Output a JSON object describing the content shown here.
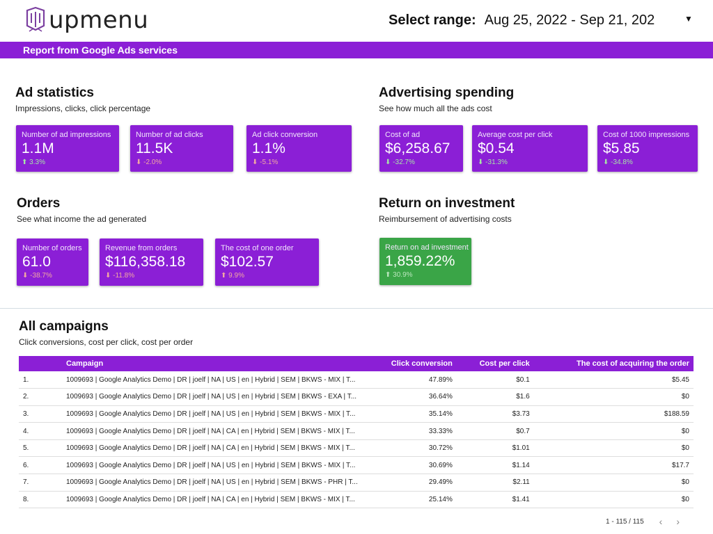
{
  "header": {
    "logo_text": "upmenu",
    "range_label": "Select range:",
    "range_value": "Aug 25, 2022 - Sep 21, 202",
    "caret": "▼"
  },
  "banner": {
    "text": "Report from Google Ads services"
  },
  "ad_statistics": {
    "title": "Ad statistics",
    "subtitle": "Impressions, clicks, click percentage",
    "cards": [
      {
        "label": "Number of ad impressions",
        "value": "1.1M",
        "delta": "3.3%",
        "direction": "up"
      },
      {
        "label": "Number of ad clicks",
        "value": "11.5K",
        "delta": "-2.0%",
        "direction": "down"
      },
      {
        "label": "Ad click conversion",
        "value": "1.1%",
        "delta": "-5.1%",
        "direction": "down"
      }
    ]
  },
  "advertising_spending": {
    "title": "Advertising spending",
    "subtitle": "See how much all the ads cost",
    "cards": [
      {
        "label": "Cost of ad",
        "value": "$6,258.67",
        "delta": "-32.7%",
        "direction": "down"
      },
      {
        "label": "Average cost per click",
        "value": "$0.54",
        "delta": "-31.3%",
        "direction": "down"
      },
      {
        "label": "Cost of 1000 impressions",
        "value": "$5.85",
        "delta": "-34.8%",
        "direction": "down"
      }
    ]
  },
  "orders": {
    "title": "Orders",
    "subtitle": "See what income the ad generated",
    "cards": [
      {
        "label": "Number of orders",
        "value": "61.0",
        "delta": "-38.7%",
        "direction": "down"
      },
      {
        "label": "Revenue from orders",
        "value": "$116,358.18",
        "delta": "-11.8%",
        "direction": "down"
      },
      {
        "label": "The cost of one order",
        "value": "$102.57",
        "delta": "9.9%",
        "direction": "up"
      }
    ]
  },
  "roi": {
    "title": "Return on investment",
    "subtitle": "Reimbursement of advertising costs",
    "cards": [
      {
        "label": "Return on ad investment",
        "value": "1,859.22%",
        "delta": "30.9%",
        "direction": "up"
      }
    ]
  },
  "campaigns": {
    "title": "All campaigns",
    "subtitle": "Click conversions, cost per click, cost per order",
    "columns": [
      "",
      "Campaign",
      "Click conversion",
      "Cost per click",
      "The cost of acquiring the order"
    ],
    "rows": [
      [
        "1.",
        "1009693 | Google Analytics Demo | DR | joelf | NA | US | en | Hybrid | SEM | BKWS - MIX | T...",
        "47.89%",
        "$0.1",
        "$5.45"
      ],
      [
        "2.",
        "1009693 | Google Analytics Demo | DR | joelf | NA | US | en | Hybrid | SEM | BKWS - EXA | T...",
        "36.64%",
        "$1.6",
        "$0"
      ],
      [
        "3.",
        "1009693 | Google Analytics Demo | DR | joelf | NA | US | en | Hybrid | SEM | BKWS - MIX | T...",
        "35.14%",
        "$3.73",
        "$188.59"
      ],
      [
        "4.",
        "1009693 | Google Analytics Demo | DR | joelf | NA | CA | en | Hybrid | SEM | BKWS - MIX | T...",
        "33.33%",
        "$0.7",
        "$0"
      ],
      [
        "5.",
        "1009693 | Google Analytics Demo | DR | joelf | NA | CA | en | Hybrid | SEM | BKWS - MIX | T...",
        "30.72%",
        "$1.01",
        "$0"
      ],
      [
        "6.",
        "1009693 | Google Analytics Demo | DR | joelf | NA | US | en | Hybrid | SEM | BKWS - MIX | T...",
        "30.69%",
        "$1.14",
        "$17.7"
      ],
      [
        "7.",
        "1009693 | Google Analytics Demo | DR | joelf | NA | US | en | Hybrid | SEM | BKWS - PHR | T...",
        "29.49%",
        "$2.11",
        "$0"
      ],
      [
        "8.",
        "1009693 | Google Analytics Demo | DR | joelf | NA | CA | en | Hybrid | SEM | BKWS - MIX | T...",
        "25.14%",
        "$1.41",
        "$0"
      ]
    ],
    "pager": {
      "text": "1 - 115 / 115",
      "prev": "‹",
      "next": "›"
    }
  },
  "colors": {
    "brand": "#8b1fd6",
    "roi_card": "#3aa547"
  },
  "icons": {
    "delta_up": "arrow-up-icon",
    "delta_down": "arrow-down-icon",
    "logo": "upmenu-logo-icon"
  }
}
